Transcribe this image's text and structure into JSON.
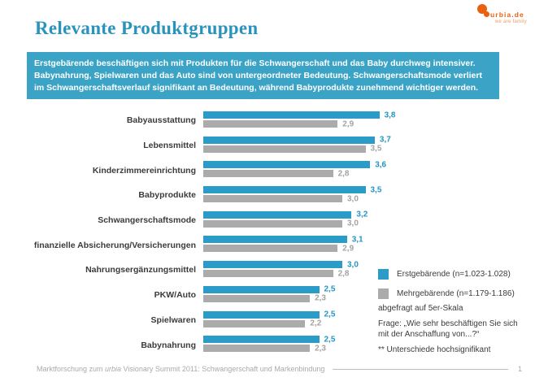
{
  "header": {
    "title": "Relevante Produktgruppen",
    "logo": {
      "name": "urbia.de",
      "tagline": "we are family",
      "color": "#e9610e"
    }
  },
  "summary": {
    "text": "Erstgebärende beschäftigen sich mit Produkten für die Schwangerschaft und das Baby durchweg intensiver. Babynahrung, Spielwaren und das Auto sind von untergeordneter Bedeutung. Schwangerschaftsmode verliert im Schwangerschaftsverlauf signifikant an Bedeutung, während Babyprodukte zunehmend wichtiger werden."
  },
  "chart_data": {
    "type": "bar",
    "orientation": "horizontal",
    "title": "",
    "categories": [
      "Babyausstattung",
      "Lebensmittel",
      "Kinderzimmereinrichtung",
      "Babyprodukte",
      "Schwangerschaftsmode",
      "finanzielle Absicherung/Versicherungen",
      "Nahrungsergänzungsmittel",
      "PKW/Auto",
      "Spielwaren",
      "Babynahrung"
    ],
    "series": [
      {
        "name": "Erstgebärende (n=1.023-1.028)",
        "color": "#2b9cc7",
        "value_label_color": "#2796c3",
        "values": [
          3.8,
          3.7,
          3.6,
          3.5,
          3.2,
          3.1,
          3.0,
          2.5,
          2.5,
          2.5
        ]
      },
      {
        "name": "Mehrgebärende (n=1.179-1.186)",
        "color": "#ababab",
        "value_label_color": "#a3a3a3",
        "values": [
          2.9,
          3.5,
          2.8,
          3.0,
          3.0,
          2.9,
          2.8,
          2.3,
          2.2,
          2.3
        ]
      }
    ],
    "xlim": [
      0,
      4
    ],
    "grid": false,
    "legend_position": "right",
    "value_format": "decimal_comma_1"
  },
  "notes": {
    "scale_note": "abgefragt auf 5er-Skala",
    "question": "Frage: „Wie sehr beschäftigen Sie sich mit der Anschaffung von...?“",
    "significance": "** Unterschiede hochsignifikant"
  },
  "footer": {
    "text_prefix": "Marktforschung zum ",
    "text_italic": "urbia",
    "text_suffix": " Visionary Summit 2011: Schwangerschaft und Markenbindung",
    "page_number": "1"
  }
}
